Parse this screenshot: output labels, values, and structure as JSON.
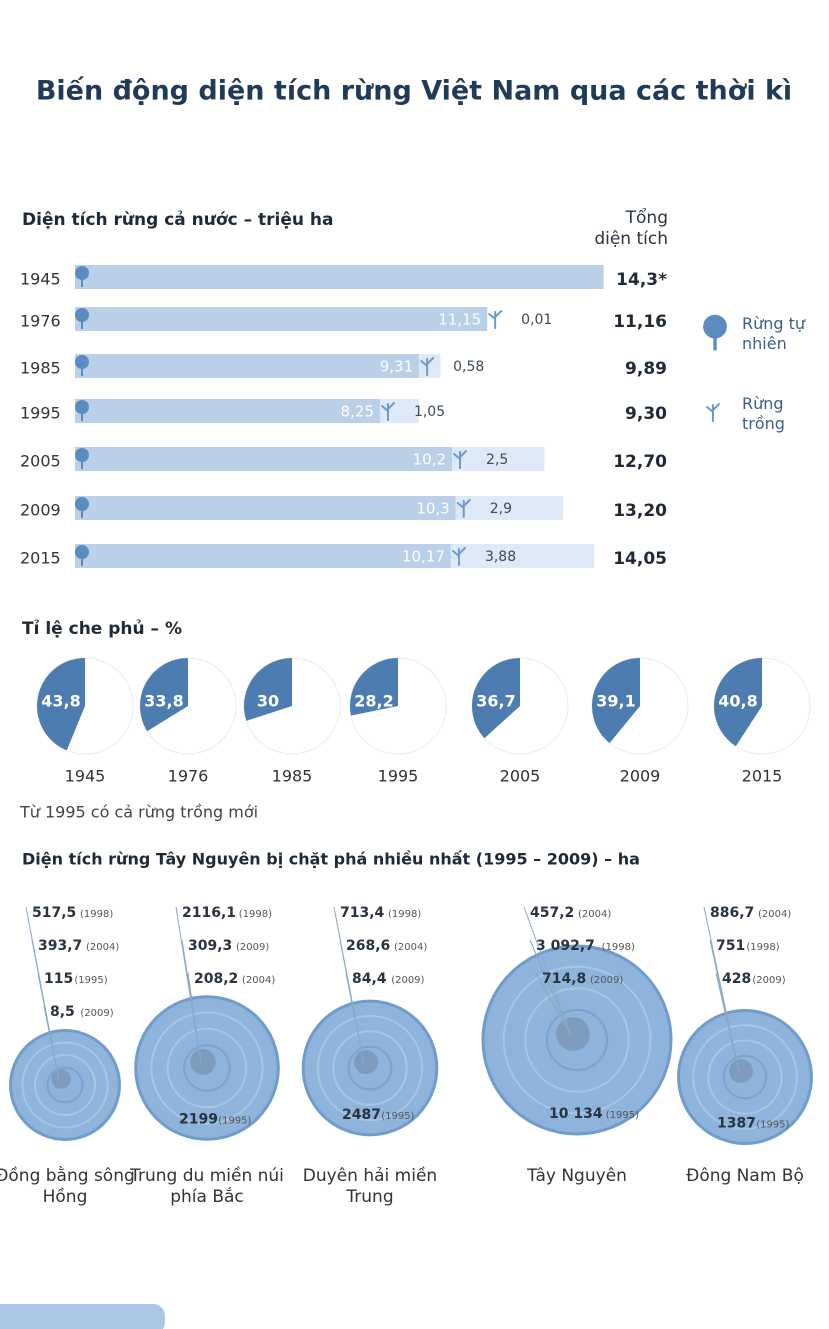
{
  "title": "Biến động diện tích rừng Việt Nam qua các thời kì",
  "chart_data": [
    {
      "type": "bar",
      "orientation": "horizontal",
      "stacked": true,
      "title": "Diện tích rừng cả nước – triệu ha",
      "categories": [
        "1945",
        "1976",
        "1985",
        "1995",
        "2005",
        "2009",
        "2015"
      ],
      "series": [
        {
          "name": "Rừng tự nhiên",
          "color": "#b9d0e8",
          "values": [
            14.3,
            11.15,
            9.31,
            8.25,
            10.2,
            10.3,
            10.17
          ],
          "value_labels": [
            null,
            "11,15",
            "9,31",
            "8,25",
            "10,2",
            "10,3",
            "10,17"
          ]
        },
        {
          "name": "Rừng trồng",
          "color": "#dde9f5",
          "values": [
            null,
            0.01,
            0.58,
            1.05,
            2.5,
            2.9,
            3.88
          ],
          "value_labels": [
            null,
            "0,01",
            "0,58",
            "1,05",
            "2,5",
            "2,9",
            "3,88"
          ]
        }
      ],
      "totals": {
        "name": "Tổng diện tích",
        "values": [
          14.3,
          11.16,
          9.89,
          9.3,
          12.7,
          13.2,
          14.05
        ],
        "value_labels": [
          "14,3*",
          "11,16",
          "9,89",
          "9,30",
          "12,70",
          "13,20",
          "14,05"
        ]
      },
      "xlim": [
        0,
        14.5
      ]
    },
    {
      "type": "pie",
      "title": "Tỉ lệ che phủ – %",
      "categories": [
        "1945",
        "1976",
        "1985",
        "1995",
        "2005",
        "2009",
        "2015"
      ],
      "values": [
        43.8,
        33.8,
        30,
        28.2,
        36.7,
        39.1,
        40.8
      ],
      "value_labels": [
        "43,8",
        "33,8",
        "30",
        "28,2",
        "36,7",
        "39,1",
        "40,8"
      ],
      "color": "#4d7db0",
      "note": "Từ 1995 có cả rừng trồng mới"
    },
    {
      "type": "tree-ring",
      "title": "Diện tích rừng Tây Nguyên bị chặt phá nhiều nhất (1995 – 2009) – ha",
      "color": "#8fb4db",
      "regions": [
        {
          "name": "Đồng bằng sông Hồng",
          "items": [
            {
              "value": 517.5,
              "label": "517,5",
              "year": "(1998)"
            },
            {
              "value": 393.7,
              "label": "393,7",
              "year": "(2004)"
            },
            {
              "value": 115,
              "label": "115",
              "year": "(1995)"
            },
            {
              "value": 8.5,
              "label": "8,5",
              "year": "(2009)"
            }
          ]
        },
        {
          "name": "Trung du miền núi phía Bắc",
          "items": [
            {
              "value": 2116.1,
              "label": "2116,1",
              "year": "(1998)"
            },
            {
              "value": 309.3,
              "label": "309,3",
              "year": "(2009)"
            },
            {
              "value": 208.2,
              "label": "208,2",
              "year": "(2004)"
            },
            {
              "value": 2199,
              "label": "2199",
              "year": "(1995)"
            }
          ]
        },
        {
          "name": "Duyên hải miền Trung",
          "items": [
            {
              "value": 713.4,
              "label": "713,4",
              "year": "(1998)"
            },
            {
              "value": 268.6,
              "label": "268,6",
              "year": "(2004)"
            },
            {
              "value": 84.4,
              "label": "84,4",
              "year": "(2009)"
            },
            {
              "value": 2487,
              "label": "2487",
              "year": "(1995)"
            }
          ]
        },
        {
          "name": "Tây Nguyên",
          "items": [
            {
              "value": 457.2,
              "label": "457,2",
              "year": "(2004)"
            },
            {
              "value": 3092.7,
              "label": "3 092,7",
              "year": "(1998)"
            },
            {
              "value": 714.8,
              "label": "714,8",
              "year": "(2009)"
            },
            {
              "value": 10134,
              "label": "10 134",
              "year": "(1995)"
            }
          ]
        },
        {
          "name": "Đông Nam Bộ",
          "items": [
            {
              "value": 886.7,
              "label": "886,7",
              "year": "(2004)"
            },
            {
              "value": 751,
              "label": "751",
              "year": "(1998)"
            },
            {
              "value": 428,
              "label": "428",
              "year": "(2009)"
            },
            {
              "value": 1387,
              "label": "1387",
              "year": "(1995)"
            }
          ]
        }
      ]
    }
  ]
}
